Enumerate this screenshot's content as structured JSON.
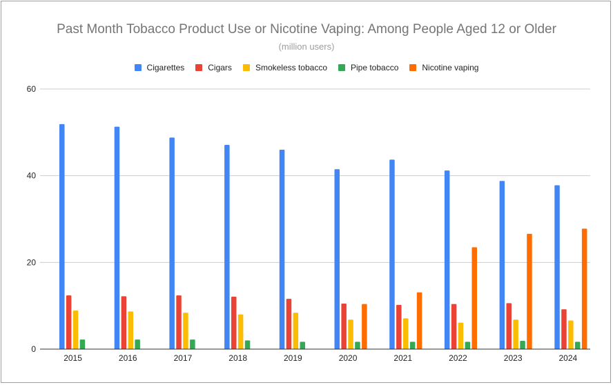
{
  "chart_data": {
    "type": "bar",
    "title": "Past Month Tobacco Product Use or Nicotine Vaping: Among People Aged 12 or Older",
    "subtitle": "(million users)",
    "xlabel": "",
    "ylabel": "",
    "ylim": [
      0,
      60
    ],
    "yticks": [
      0,
      20,
      40,
      60
    ],
    "grid": true,
    "legend_position": "top",
    "categories": [
      "2015",
      "2016",
      "2017",
      "2018",
      "2019",
      "2020",
      "2021",
      "2022",
      "2023",
      "2024"
    ],
    "series": [
      {
        "name": "Cigarettes",
        "color": "#4285f4",
        "values": [
          51.9,
          51.3,
          48.8,
          47.1,
          46.0,
          41.5,
          43.7,
          41.2,
          38.8,
          37.8
        ]
      },
      {
        "name": "Cigars",
        "color": "#ea4335",
        "values": [
          12.4,
          12.2,
          12.4,
          12.1,
          11.6,
          10.5,
          10.2,
          10.4,
          10.6,
          9.2
        ]
      },
      {
        "name": "Smokeless tobacco",
        "color": "#fbbc04",
        "values": [
          8.9,
          8.7,
          8.4,
          8.0,
          8.4,
          6.8,
          7.1,
          6.1,
          6.8,
          6.6
        ]
      },
      {
        "name": "Pipe tobacco",
        "color": "#34a853",
        "values": [
          2.2,
          2.2,
          2.2,
          2.0,
          1.7,
          1.7,
          1.7,
          1.7,
          1.9,
          1.7
        ]
      },
      {
        "name": "Nicotine vaping",
        "color": "#ff6d01",
        "values": [
          null,
          null,
          null,
          null,
          null,
          10.4,
          13.1,
          23.5,
          26.6,
          27.8
        ]
      }
    ]
  }
}
